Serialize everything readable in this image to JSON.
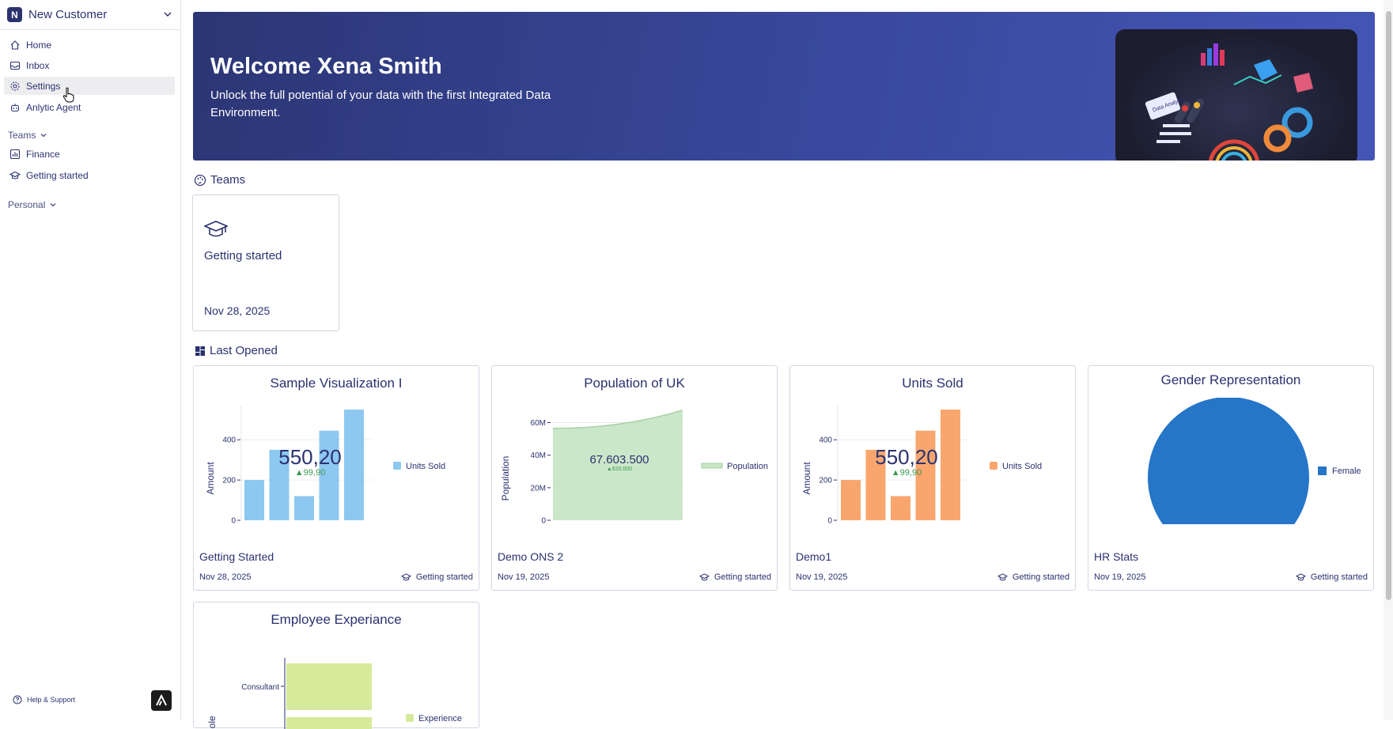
{
  "workspace": {
    "initial": "N",
    "name": "New Customer"
  },
  "nav": {
    "home": "Home",
    "inbox": "Inbox",
    "settings": "Settings",
    "agent": "Anlytic Agent"
  },
  "sidebar": {
    "teams_heading": "Teams",
    "teams": [
      "Finance",
      "Getting started"
    ],
    "personal_heading": "Personal",
    "help": "Help & Support"
  },
  "banner": {
    "title": "Welcome Xena Smith",
    "subtitle": "Unlock the full potential of your data with the first Integrated Data Environment.",
    "art_label": "Data Analytics"
  },
  "teams_section": {
    "title": "Teams",
    "cards": [
      {
        "name": "Getting started",
        "date": "Nov 28, 2025"
      }
    ]
  },
  "last_opened": {
    "title": "Last Opened",
    "cards": [
      {
        "title": "Sample Visualization I",
        "name": "Getting Started",
        "date": "Nov 28, 2025",
        "team": "Getting started"
      },
      {
        "title": "Population of UK",
        "name": "Demo ONS 2",
        "date": "Nov 19, 2025",
        "team": "Getting started"
      },
      {
        "title": "Units Sold",
        "name": "Demo1",
        "date": "Nov 19, 2025",
        "team": "Getting started"
      },
      {
        "title": "Gender Representation",
        "name": "HR Stats",
        "date": "Nov 19, 2025",
        "team": "Getting started"
      },
      {
        "title": "Employee Experiance",
        "name": "",
        "date": "",
        "team": ""
      }
    ]
  },
  "chart_data": [
    {
      "type": "bar",
      "title": "Sample Visualization I",
      "ylabel": "Amount",
      "ylim": [
        0,
        550
      ],
      "yticks": [
        "0",
        "200",
        "400"
      ],
      "values": [
        200,
        350,
        120,
        445,
        550
      ],
      "series": [
        {
          "name": "Units Sold",
          "values": [
            200,
            350,
            120,
            445,
            550
          ]
        }
      ],
      "kpi": "550,20",
      "kpi_delta": "▲99,90",
      "color": "#8cc8f0",
      "legend": "right"
    },
    {
      "type": "area",
      "title": "Population of UK",
      "ylabel": "Population",
      "ylim": [
        0,
        68000000
      ],
      "yticks": [
        "0",
        "20M",
        "40M",
        "60M"
      ],
      "values": [
        56500000,
        56600000,
        57000000,
        57800000,
        59000000,
        60500000,
        62500000,
        64800000,
        67600000
      ],
      "series": [
        {
          "name": "Population",
          "values": [
            56500000,
            56600000,
            57000000,
            57800000,
            59000000,
            60500000,
            62500000,
            64800000,
            67600000
          ]
        }
      ],
      "kpi": "67.603.500",
      "kpi_delta": "▲620.000",
      "color": "#c8e6c6",
      "legend": "right"
    },
    {
      "type": "bar",
      "title": "Units Sold",
      "ylabel": "Amount",
      "ylim": [
        0,
        550
      ],
      "yticks": [
        "0",
        "200",
        "400"
      ],
      "values": [
        200,
        350,
        120,
        445,
        550
      ],
      "series": [
        {
          "name": "Units Sold",
          "values": [
            200,
            350,
            120,
            445,
            550
          ]
        }
      ],
      "kpi": "550,20",
      "kpi_delta": "▲99,90",
      "color": "#f8a66e",
      "legend": "right"
    },
    {
      "type": "pie",
      "title": "Gender Representation",
      "series": [
        {
          "name": "Female",
          "values": [
            100
          ]
        }
      ],
      "color": "#2576c8",
      "legend": "right"
    },
    {
      "type": "bar",
      "orientation": "horizontal",
      "title": "Employee Experiance",
      "ylabel": "Role",
      "categories": [
        "Consultant"
      ],
      "series": [
        {
          "name": "Experience",
          "values": [
            1
          ]
        }
      ],
      "color": "#d5eb9b",
      "legend": "right"
    }
  ]
}
